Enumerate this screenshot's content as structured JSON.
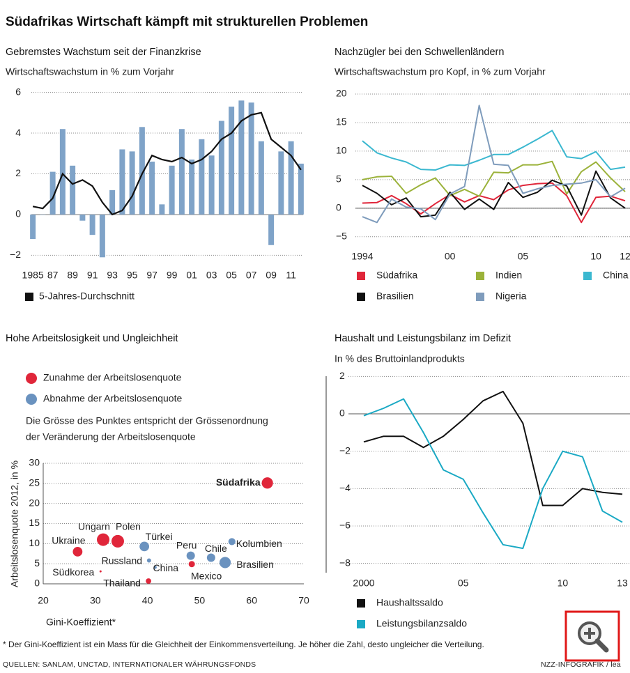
{
  "header": {
    "title": "Südafrikas Wirtschaft kämpft mit strukturellen Problemen"
  },
  "chart_data": [
    {
      "type": "combo",
      "title": "Gebremstes Wachstum seit der Finanzkrise",
      "subtitle": "Wirtschaftswachstum in % zum Vorjahr",
      "categories": [
        "1985",
        null,
        "87",
        null,
        "89",
        null,
        "91",
        null,
        "93",
        null,
        "95",
        null,
        "97",
        null,
        "99",
        null,
        "01",
        null,
        "03",
        null,
        "05",
        null,
        "07",
        null,
        "09",
        null,
        "11",
        null
      ],
      "series": [
        {
          "kind": "bar",
          "color": "#7fa3c8",
          "values": [
            -1.2,
            0.0,
            2.1,
            4.2,
            2.4,
            -0.3,
            -1.0,
            -2.1,
            1.2,
            3.2,
            3.1,
            4.3,
            2.6,
            0.5,
            2.4,
            4.2,
            2.7,
            3.7,
            2.9,
            4.6,
            5.3,
            5.6,
            5.5,
            3.6,
            -1.5,
            3.1,
            3.6,
            2.5
          ]
        },
        {
          "kind": "line",
          "name": "5-Jahres-Durchschnitt",
          "color": "#111111",
          "values": [
            0.4,
            0.3,
            0.8,
            2.0,
            1.5,
            1.7,
            1.4,
            0.6,
            0.0,
            0.2,
            0.9,
            2.0,
            2.9,
            2.7,
            2.6,
            2.8,
            2.5,
            2.7,
            3.1,
            3.7,
            4.0,
            4.6,
            4.9,
            5.0,
            3.7,
            3.3,
            2.9,
            2.2
          ]
        }
      ],
      "ylim": [
        -2.5,
        6.5
      ],
      "yticks": [
        {
          "value": -2,
          "label": "−2"
        },
        0,
        2,
        4,
        6
      ],
      "grid": true
    },
    {
      "type": "line",
      "title": "Nachzügler bei den Schwellenländern",
      "subtitle": "Wirtschaftswachstum pro Kopf, in % zum Vorjahr",
      "x": [
        1994,
        1995,
        1996,
        1997,
        1998,
        1999,
        2000,
        2001,
        2002,
        2003,
        2004,
        2005,
        2006,
        2007,
        2008,
        2009,
        2010,
        2011,
        2012
      ],
      "series": [
        {
          "name": "Südafrika",
          "color": "#e0263a",
          "values": [
            0.9,
            1.0,
            2.2,
            0.8,
            -1.0,
            0.8,
            2.4,
            1.1,
            2.2,
            1.5,
            3.2,
            4.0,
            4.3,
            4.4,
            2.2,
            -2.5,
            1.9,
            2.1,
            1.3
          ]
        },
        {
          "name": "Indien",
          "color": "#9bb23a",
          "values": [
            5.0,
            5.5,
            5.6,
            2.6,
            4.1,
            5.3,
            2.2,
            3.3,
            2.1,
            6.3,
            6.2,
            7.6,
            7.6,
            8.2,
            2.5,
            6.4,
            8.1,
            5.3,
            2.9
          ]
        },
        {
          "name": "China",
          "color": "#3bb8d0",
          "values": [
            11.8,
            9.7,
            8.8,
            8.1,
            6.8,
            6.7,
            7.6,
            7.5,
            8.4,
            9.4,
            9.4,
            10.7,
            12.1,
            13.6,
            9.0,
            8.7,
            9.9,
            6.8,
            7.2
          ]
        },
        {
          "name": "Brasilien",
          "color": "#111111",
          "values": [
            4.0,
            2.6,
            0.6,
            1.8,
            -1.5,
            -1.2,
            2.8,
            -0.2,
            1.6,
            -0.2,
            4.5,
            1.9,
            2.8,
            4.9,
            3.9,
            -1.2,
            6.5,
            1.8,
            0.0
          ]
        },
        {
          "name": "Nigeria",
          "color": "#7f9cbc",
          "values": [
            -1.5,
            -2.5,
            1.6,
            0.2,
            -0.1,
            -2.0,
            2.5,
            3.8,
            18.0,
            7.7,
            7.5,
            2.6,
            3.4,
            4.0,
            4.2,
            4.4,
            5.0,
            2.0,
            3.5
          ]
        }
      ],
      "xlim": [
        1994,
        2012
      ],
      "xticks": [
        1994,
        {
          "value": 2000,
          "label": "00"
        },
        {
          "value": 2005,
          "label": "05"
        },
        {
          "value": 2010,
          "label": "10"
        },
        {
          "value": 2012,
          "label": "12"
        }
      ],
      "ylim": [
        -6,
        20
      ],
      "yticks": [
        {
          "value": -5,
          "label": "−5"
        },
        0,
        5,
        10,
        15,
        20
      ],
      "grid": true
    },
    {
      "type": "scatter",
      "title": "Hohe Arbeitslosigkeit und Ungleichheit",
      "notes": [
        "Die Grösse des Punktes entspricht der Grössenordnung",
        "der Veränderung der Arbeitslosenquote"
      ],
      "x_label": "Gini-Koeffizient*",
      "y_label": "Arbeitslosenquote 2012, in %",
      "series": [
        {
          "name": "Zunahme der Arbeitslosenquote",
          "color": "#e0263a",
          "labels": [
            "Südafrika",
            "Ukraine",
            "Ungarn",
            "Polen",
            "Südkorea",
            "Thailand",
            "Mexico"
          ],
          "x": [
            63,
            26.6,
            31.5,
            34.3,
            31,
            40.2,
            48.5
          ],
          "values": [
            25.1,
            8,
            11,
            10.6,
            3.1,
            0.7,
            4.9
          ],
          "sizes": [
            2.7,
            2.3,
            3,
            3,
            0.5,
            1.3,
            1.5
          ]
        },
        {
          "name": "Abnahme der Arbeitslosenquote",
          "color": "#6a92bf",
          "labels": [
            "Türkei",
            "Russland",
            "China",
            "Peru",
            "Chile",
            "Kolumbien",
            "Brasilien"
          ],
          "x": [
            39.4,
            40.3,
            41.5,
            48.3,
            52.2,
            56.2,
            54.9
          ],
          "values": [
            9.3,
            5.8,
            4.1,
            7,
            6.5,
            10.5,
            5.3
          ],
          "sizes": [
            2.3,
            1,
            0.7,
            2,
            2,
            1.7,
            2.7
          ]
        }
      ],
      "xlim": [
        20,
        70
      ],
      "xticks": [
        20,
        30,
        40,
        50,
        60,
        70
      ],
      "ylim": [
        0,
        30
      ],
      "yticks": [
        0,
        5,
        10,
        15,
        20,
        25,
        30
      ],
      "grid": true
    },
    {
      "type": "line",
      "title": "Haushalt und Leistungsbilanz im Defizit",
      "subtitle": "In % des Bruttoinlandprodukts",
      "x": [
        2000,
        2001,
        2002,
        2003,
        2004,
        2005,
        2006,
        2007,
        2008,
        2009,
        2010,
        2011,
        2012,
        2013
      ],
      "series": [
        {
          "name": "Haushaltssaldo",
          "color": "#111111",
          "values": [
            -1.5,
            -1.2,
            -1.2,
            -1.8,
            -1.2,
            -0.3,
            0.7,
            1.2,
            -0.5,
            -4.9,
            -4.9,
            -4.0,
            -4.2,
            -4.3
          ]
        },
        {
          "name": "Leistungsbilanzsaldo",
          "color": "#1aa9c4",
          "values": [
            -0.1,
            0.3,
            0.8,
            -1.0,
            -3.0,
            -3.5,
            -5.3,
            -7.0,
            -7.2,
            -4.0,
            -2.0,
            -2.3,
            -5.2,
            -5.8
          ]
        }
      ],
      "xlim": [
        2000,
        2013
      ],
      "xticks": [
        2000,
        {
          "value": 2005,
          "label": "05"
        },
        {
          "value": 2010,
          "label": "10"
        },
        {
          "value": 2013,
          "label": "13"
        }
      ],
      "ylim": [
        -8.5,
        2.5
      ],
      "yticks": [
        {
          "value": -8,
          "label": "−8"
        },
        {
          "value": -6,
          "label": "−6"
        },
        {
          "value": -4,
          "label": "−4"
        },
        {
          "value": -2,
          "label": "−2"
        },
        0,
        2
      ],
      "grid": true
    }
  ],
  "footer": {
    "footnote": "* Der Gini-Koeffizient ist ein Mass für die Gleichheit der Einkommensverteilung. Je höher die Zahl, desto ungleicher die Verteilung.",
    "sources": "QUELLEN: SANLAM, UNCTAD, INTERNATIONALER WÄHRUNGSFONDS",
    "credit": "NZZ-INFOGRAFIK / lea"
  }
}
